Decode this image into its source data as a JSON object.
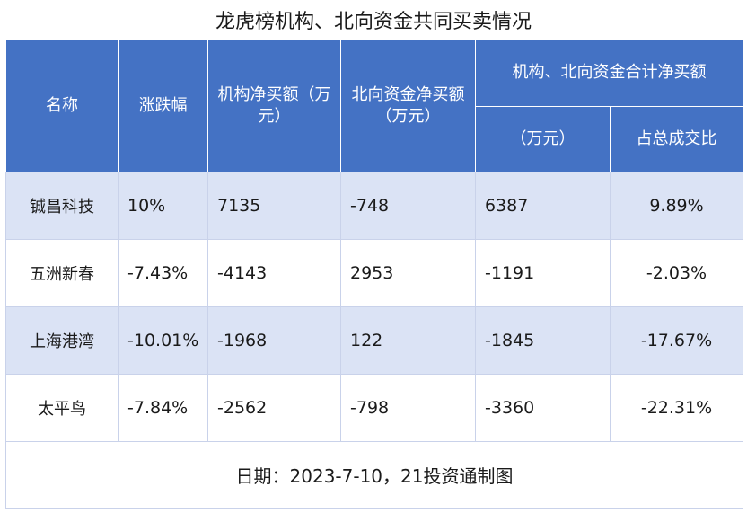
{
  "title": "龙虎榜机构、北向资金共同买卖情况",
  "headers": {
    "name": "名称",
    "change": "涨跌幅",
    "inst_net": "机构净买额（万元）",
    "north_net": "北向资金净买额（万元）",
    "combined_group": "机构、北向资金合计净买额",
    "combined_amount": "（万元）",
    "combined_ratio": "占总成交比"
  },
  "rows": [
    {
      "name": "铖昌科技",
      "change": "10%",
      "inst_net": "7135",
      "north_net": "-748",
      "combined_amount": "6387",
      "combined_ratio": "9.89%"
    },
    {
      "name": "五洲新春",
      "change": "-7.43%",
      "inst_net": "-4143",
      "north_net": "2953",
      "combined_amount": "-1191",
      "combined_ratio": "-2.03%"
    },
    {
      "name": "上海港湾",
      "change": "-10.01%",
      "inst_net": "-1968",
      "north_net": "122",
      "combined_amount": "-1845",
      "combined_ratio": "-17.67%"
    },
    {
      "name": "太平鸟",
      "change": "-7.84%",
      "inst_net": "-2562",
      "north_net": "-798",
      "combined_amount": "-3360",
      "combined_ratio": "-22.31%"
    }
  ],
  "footer": "日期：2023-7-10，21投资通制图"
}
